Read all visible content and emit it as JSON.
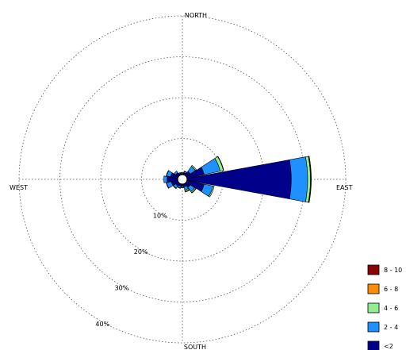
{
  "chart_data": {
    "type": "wind-rose",
    "directions": [
      "N",
      "NNE",
      "NE",
      "ENE",
      "E",
      "ESE",
      "SE",
      "SSE",
      "S",
      "SSW",
      "SW",
      "WSW",
      "W",
      "WNW",
      "NW",
      "NNW"
    ],
    "direction_labels": {
      "north": "NORTH",
      "east": "EAST",
      "south": "SOUTH",
      "west": "WEST"
    },
    "radial_ticks": [
      {
        "value": 10,
        "label": "10%"
      },
      {
        "value": 20,
        "label": "20%"
      },
      {
        "value": 30,
        "label": "30%"
      },
      {
        "value": 40,
        "label": "40%"
      }
    ],
    "rmax": 40,
    "grid": true,
    "legend_position": "bottom-right",
    "series": [
      {
        "name": "<2",
        "color": "#00008b",
        "values": [
          0.3,
          0.5,
          1.2,
          4.3,
          25.5,
          4.3,
          1.2,
          0.7,
          0.5,
          0.6,
          0.8,
          1.6,
          2.6,
          1.8,
          0.8,
          0.4
        ]
      },
      {
        "name": "2 - 4",
        "color": "#1e90ff",
        "values": [
          0.2,
          0.3,
          1.5,
          4.0,
          4.0,
          2.2,
          1.3,
          0.8,
          0.3,
          0.4,
          0.7,
          1.2,
          0.8,
          1.0,
          0.5,
          0.2
        ]
      },
      {
        "name": "4 - 6",
        "color": "#90ee90",
        "values": [
          0.0,
          0.1,
          0.3,
          0.8,
          0.7,
          0.3,
          0.3,
          0.3,
          0.1,
          0.1,
          0.1,
          0.1,
          0.0,
          0.1,
          0.0,
          0.0
        ]
      },
      {
        "name": "6 - 8",
        "color": "#ff8c00",
        "values": [
          0.0,
          0.0,
          0.0,
          0.1,
          0.1,
          0.0,
          0.1,
          0.2,
          0.0,
          0.0,
          0.0,
          0.0,
          0.0,
          0.0,
          0.0,
          0.0
        ]
      },
      {
        "name": "8 - 10",
        "color": "#8b0000",
        "values": [
          0.0,
          0.0,
          0.0,
          0.0,
          0.1,
          0.0,
          0.0,
          0.0,
          0.0,
          0.0,
          0.0,
          0.0,
          0.0,
          0.0,
          0.0,
          0.0
        ]
      }
    ],
    "legend_order": [
      "8 - 10",
      "6 - 8",
      "4 - 6",
      "2 - 4",
      "<2"
    ]
  }
}
